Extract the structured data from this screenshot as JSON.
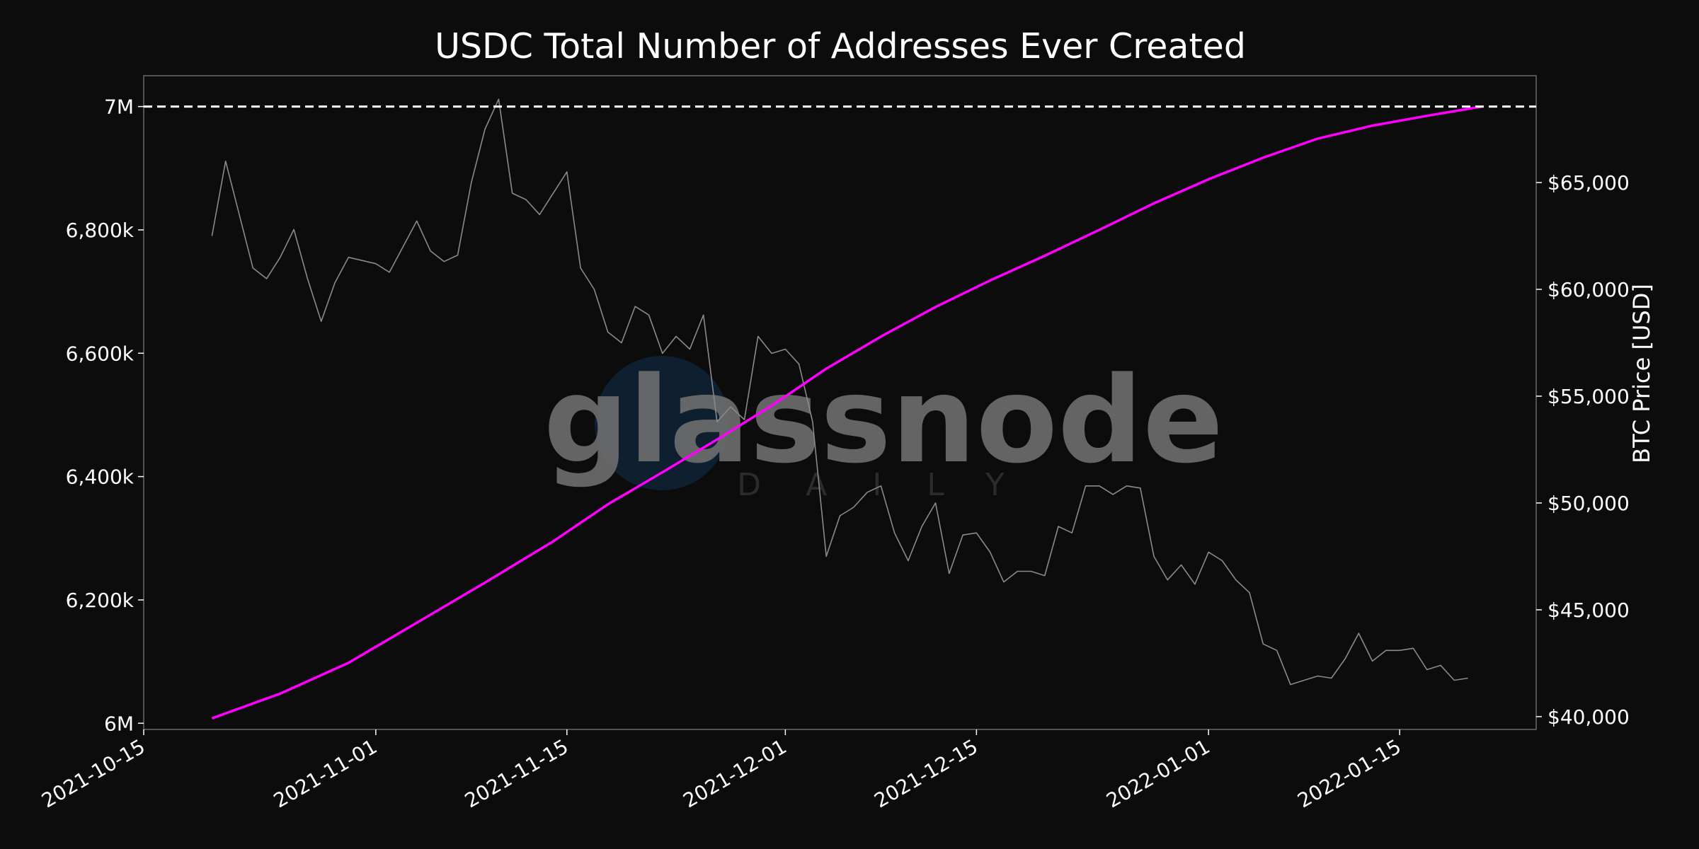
{
  "chart_data": {
    "type": "line",
    "title": "USDC Total Number of Addresses Ever Created",
    "xlabel": "",
    "ylabel_left": "",
    "ylabel_right": "BTC Price [USD]",
    "x_ticks": [
      "2021-10-15",
      "2021-11-01",
      "2021-11-15",
      "2021-12-01",
      "2021-12-15",
      "2022-01-01",
      "2022-01-15"
    ],
    "x_range": [
      "2021-10-15",
      "2022-01-25"
    ],
    "y_left_ticks": [
      "6M",
      "6,200k",
      "6,400k",
      "6,600k",
      "6,800k",
      "7M"
    ],
    "y_left_range": [
      5990000,
      7050000
    ],
    "y_right_ticks": [
      "$40,000",
      "$45,000",
      "$50,000",
      "$55,000",
      "$60,000",
      "$65,000"
    ],
    "y_right_range": [
      39400,
      70000
    ],
    "reference_line": {
      "axis": "left",
      "value": 7000000,
      "style": "dashed",
      "color": "#ffffff"
    },
    "grid": false,
    "colors": {
      "background": "#0c0c0c",
      "addresses": "#ff00ff",
      "price": "#8a8a8a",
      "frame": "#6a6a6a",
      "text": "#ffffff"
    },
    "watermark": {
      "brand": "glassnode",
      "sub": "DAILY"
    },
    "series": [
      {
        "axis": "left",
        "color": "#ff00ff",
        "points": [
          [
            "2021-10-20",
            6008000
          ],
          [
            "2021-10-25",
            6048000
          ],
          [
            "2021-10-30",
            6098000
          ],
          [
            "2021-11-04",
            6163000
          ],
          [
            "2021-11-09",
            6228000
          ],
          [
            "2021-11-14",
            6295000
          ],
          [
            "2021-11-18",
            6355000
          ],
          [
            "2021-11-22",
            6407000
          ],
          [
            "2021-11-26",
            6460000
          ],
          [
            "2021-11-30",
            6515000
          ],
          [
            "2021-12-04",
            6575000
          ],
          [
            "2021-12-08",
            6627000
          ],
          [
            "2021-12-12",
            6675000
          ],
          [
            "2021-12-16",
            6718000
          ],
          [
            "2021-12-20",
            6758000
          ],
          [
            "2021-12-24",
            6800000
          ],
          [
            "2021-12-28",
            6843000
          ],
          [
            "2022-01-01",
            6882000
          ],
          [
            "2022-01-05",
            6917000
          ],
          [
            "2022-01-09",
            6948000
          ],
          [
            "2022-01-13",
            6969000
          ],
          [
            "2022-01-17",
            6985000
          ],
          [
            "2022-01-21",
            7000000
          ]
        ]
      },
      {
        "axis": "right",
        "color": "#8a8a8a",
        "points": [
          [
            "2021-10-20",
            62500
          ],
          [
            "2021-10-21",
            66000
          ],
          [
            "2021-10-22",
            63500
          ],
          [
            "2021-10-23",
            61000
          ],
          [
            "2021-10-24",
            60500
          ],
          [
            "2021-10-25",
            61500
          ],
          [
            "2021-10-26",
            62800
          ],
          [
            "2021-10-27",
            60500
          ],
          [
            "2021-10-28",
            58500
          ],
          [
            "2021-10-29",
            60300
          ],
          [
            "2021-10-30",
            61500
          ],
          [
            "2021-11-01",
            61200
          ],
          [
            "2021-11-02",
            60800
          ],
          [
            "2021-11-03",
            62000
          ],
          [
            "2021-11-04",
            63200
          ],
          [
            "2021-11-05",
            61800
          ],
          [
            "2021-11-06",
            61300
          ],
          [
            "2021-11-07",
            61600
          ],
          [
            "2021-11-08",
            65000
          ],
          [
            "2021-11-09",
            67500
          ],
          [
            "2021-11-10",
            68900
          ],
          [
            "2021-11-11",
            64500
          ],
          [
            "2021-11-12",
            64200
          ],
          [
            "2021-11-13",
            63500
          ],
          [
            "2021-11-14",
            64500
          ],
          [
            "2021-11-15",
            65500
          ],
          [
            "2021-11-16",
            61000
          ],
          [
            "2021-11-17",
            60000
          ],
          [
            "2021-11-18",
            58000
          ],
          [
            "2021-11-19",
            57500
          ],
          [
            "2021-11-20",
            59200
          ],
          [
            "2021-11-21",
            58800
          ],
          [
            "2021-11-22",
            57000
          ],
          [
            "2021-11-23",
            57800
          ],
          [
            "2021-11-24",
            57200
          ],
          [
            "2021-11-25",
            58800
          ],
          [
            "2021-11-26",
            53800
          ],
          [
            "2021-11-27",
            54500
          ],
          [
            "2021-11-28",
            53900
          ],
          [
            "2021-11-29",
            57800
          ],
          [
            "2021-11-30",
            57000
          ],
          [
            "2021-12-01",
            57200
          ],
          [
            "2021-12-02",
            56500
          ],
          [
            "2021-12-03",
            53800
          ],
          [
            "2021-12-04",
            47500
          ],
          [
            "2021-12-05",
            49400
          ],
          [
            "2021-12-06",
            49800
          ],
          [
            "2021-12-07",
            50500
          ],
          [
            "2021-12-08",
            50800
          ],
          [
            "2021-12-09",
            48600
          ],
          [
            "2021-12-10",
            47300
          ],
          [
            "2021-12-11",
            48900
          ],
          [
            "2021-12-12",
            50000
          ],
          [
            "2021-12-13",
            46700
          ],
          [
            "2021-12-14",
            48500
          ],
          [
            "2021-12-15",
            48600
          ],
          [
            "2021-12-16",
            47700
          ],
          [
            "2021-12-17",
            46300
          ],
          [
            "2021-12-18",
            46800
          ],
          [
            "2021-12-19",
            46800
          ],
          [
            "2021-12-20",
            46600
          ],
          [
            "2021-12-21",
            48900
          ],
          [
            "2021-12-22",
            48600
          ],
          [
            "2021-12-23",
            50800
          ],
          [
            "2021-12-24",
            50800
          ],
          [
            "2021-12-25",
            50400
          ],
          [
            "2021-12-26",
            50800
          ],
          [
            "2021-12-27",
            50700
          ],
          [
            "2021-12-28",
            47500
          ],
          [
            "2021-12-29",
            46400
          ],
          [
            "2021-12-30",
            47100
          ],
          [
            "2021-12-31",
            46200
          ],
          [
            "2022-01-01",
            47700
          ],
          [
            "2022-01-02",
            47300
          ],
          [
            "2022-01-03",
            46400
          ],
          [
            "2022-01-04",
            45800
          ],
          [
            "2022-01-05",
            43400
          ],
          [
            "2022-01-06",
            43100
          ],
          [
            "2022-01-07",
            41500
          ],
          [
            "2022-01-08",
            41700
          ],
          [
            "2022-01-09",
            41900
          ],
          [
            "2022-01-10",
            41800
          ],
          [
            "2022-01-11",
            42700
          ],
          [
            "2022-01-12",
            43900
          ],
          [
            "2022-01-13",
            42600
          ],
          [
            "2022-01-14",
            43100
          ],
          [
            "2022-01-15",
            43100
          ],
          [
            "2022-01-16",
            43200
          ],
          [
            "2022-01-17",
            42200
          ],
          [
            "2022-01-18",
            42400
          ],
          [
            "2022-01-19",
            41700
          ],
          [
            "2022-01-20",
            41800
          ]
        ]
      }
    ]
  }
}
